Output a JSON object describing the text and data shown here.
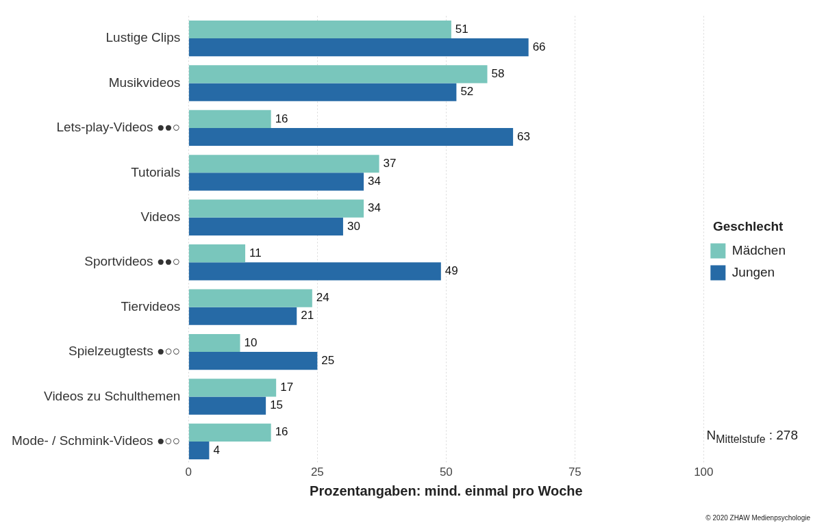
{
  "chart_data": {
    "type": "bar",
    "orientation": "horizontal",
    "xlabel": "Prozentangaben: mind. einmal pro Woche",
    "legend_title": "Geschlecht",
    "legend": "right",
    "categories": [
      "Lustige Clips",
      "Musikvideos",
      "Lets-play-Videos ●●○",
      "Tutorials",
      "Videos",
      "Sportvideos ●●○",
      "Tiervideos",
      "Spielzeugtests ●○○",
      "Videos zu Schulthemen",
      "Mode- / Schmink-Videos ●○○"
    ],
    "series": [
      {
        "name": "Mädchen",
        "color": "#79c6bc",
        "values": [
          51,
          58,
          16,
          37,
          34,
          11,
          24,
          10,
          17,
          16
        ]
      },
      {
        "name": "Jungen",
        "color": "#266aa6",
        "values": [
          66,
          52,
          63,
          34,
          30,
          49,
          21,
          25,
          15,
          4
        ]
      }
    ],
    "xlim": [
      0,
      100
    ],
    "xticks": [
      0,
      25,
      50,
      75,
      100
    ],
    "grid": "x",
    "data_labels": true,
    "annotations": [
      "N$_{Mittelstufe}$ : 278",
      "© 2020 ZHAW Medienpsychologie"
    ]
  }
}
